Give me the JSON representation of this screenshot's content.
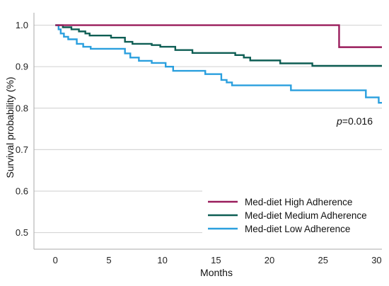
{
  "chart_data": {
    "type": "line",
    "step": true,
    "ylabel": "Survival probability (%)",
    "xlabel": "Months",
    "xlim": [
      -2,
      30.5
    ],
    "ylim": [
      0.46,
      1.03
    ],
    "xticks": [
      0,
      5,
      10,
      15,
      20,
      25,
      30
    ],
    "yticks": [
      0.5,
      0.6,
      0.7,
      0.8,
      0.9,
      1.0
    ],
    "grid": true,
    "legend_position": "bottom-right",
    "annotation": {
      "prefix": "p",
      "value": "=0.016"
    },
    "series": [
      {
        "name": "Med-diet High Adherence",
        "color": "#9a1d5c",
        "x": [
          0,
          26.5,
          30.5
        ],
        "y": [
          1.0,
          0.947,
          0.947
        ]
      },
      {
        "name": "Med-diet Medium Adherence",
        "color": "#0e5e54",
        "x": [
          0,
          0.7,
          1.5,
          2.2,
          2.8,
          3.2,
          5.2,
          6.5,
          7.2,
          9.0,
          9.8,
          11.2,
          12.8,
          15.5,
          16.8,
          17.6,
          18.2,
          21.0,
          24.0,
          30.5
        ],
        "y": [
          1.0,
          0.995,
          0.99,
          0.985,
          0.98,
          0.975,
          0.97,
          0.96,
          0.955,
          0.952,
          0.948,
          0.94,
          0.933,
          0.933,
          0.928,
          0.922,
          0.915,
          0.908,
          0.902,
          0.902
        ],
        "end_x": 30.5
      },
      {
        "name": "Med-diet Low Adherence",
        "color": "#2a9fde",
        "x": [
          0,
          0.3,
          0.5,
          0.8,
          1.2,
          2.0,
          2.6,
          3.3,
          6.5,
          7.0,
          7.8,
          9.0,
          10.3,
          11.0,
          14.0,
          15.5,
          16.0,
          16.5,
          22.0,
          29.0,
          30.2,
          30.5
        ],
        "y": [
          1.0,
          0.99,
          0.98,
          0.972,
          0.966,
          0.955,
          0.948,
          0.943,
          0.932,
          0.922,
          0.914,
          0.909,
          0.9,
          0.89,
          0.882,
          0.868,
          0.862,
          0.855,
          0.843,
          0.826,
          0.813,
          0.813
        ]
      }
    ]
  }
}
